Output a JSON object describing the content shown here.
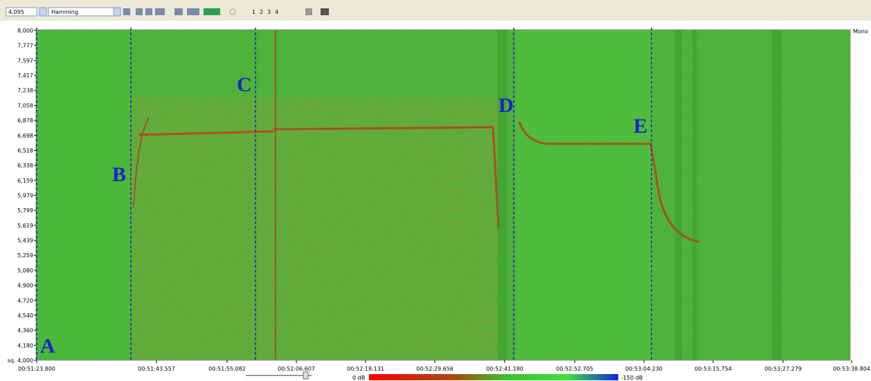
{
  "toolbar": {
    "fft_size": "4,095",
    "window": "Hamming",
    "channels": [
      "1",
      "2",
      "3",
      "4"
    ]
  },
  "channel_label": "Mono",
  "y_axis": {
    "labels": [
      "8,000",
      "7,777",
      "7,597",
      "7,417",
      "7,238",
      "7,058",
      "6,878",
      "6,698",
      "6,518",
      "6,338",
      "6,159",
      "5,979",
      "5,799",
      "5,619",
      "5,439",
      "5,259",
      "5,080",
      "4,900",
      "4,720",
      "4,540",
      "4,360",
      "4,180",
      "sq. 4,000"
    ]
  },
  "x_axis": {
    "labels": [
      "00:51:23.800",
      "00:51:43.557",
      "00:51:55.082",
      "00:52:06.607",
      "00:52:18.131",
      "00:52:29.656",
      "00:52:41.180",
      "00:52:52.705",
      "00:53:04.230",
      "00:53:15.754",
      "00:53:27.279",
      "00:53:38.804"
    ]
  },
  "markers": [
    "A",
    "B",
    "C",
    "D",
    "E"
  ],
  "colorbar": {
    "min_label": "0 dB",
    "max_label": "-150 dB"
  }
}
